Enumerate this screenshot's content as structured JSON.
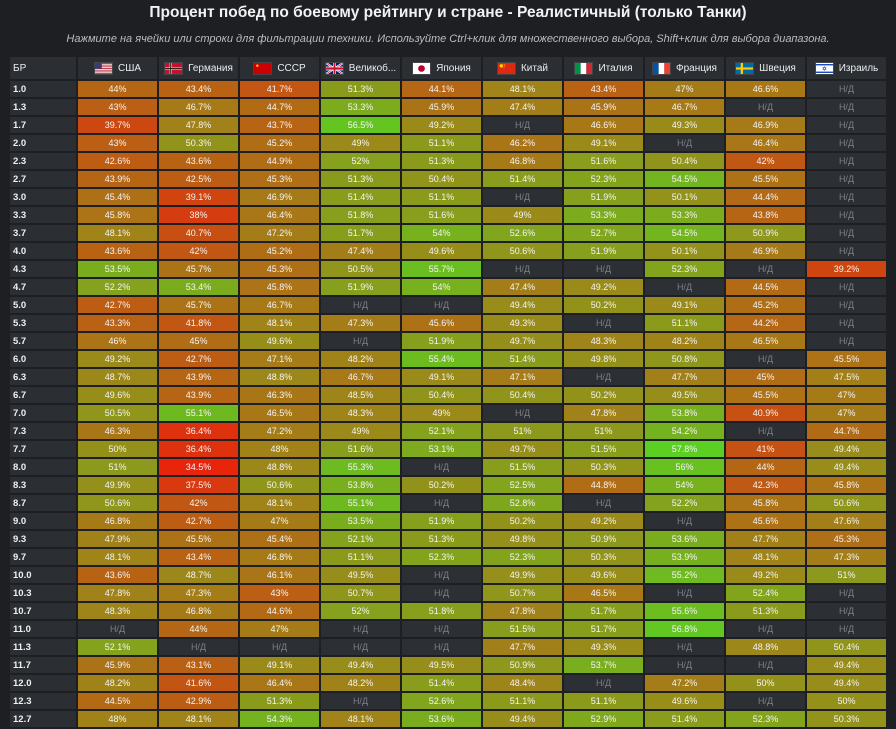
{
  "header": {
    "title": "Процент побед по боевому рейтингу и стране - Реалистичный (только Танки)",
    "subtitle": "Нажмите на ячейки или строки для фильтрации техники. Используйте Ctrl+клик для множественного выбора, Shift+клик для выбора диапазона."
  },
  "chart_data": {
    "type": "heatmap",
    "title": "Процент побед по боевому рейтингу и стране - Реалистичный (только Танки)",
    "row_header": "БР",
    "na_label": "Н/Д",
    "value_suffix": "%",
    "color_scale": {
      "low": "#e8240b",
      "mid": "#9a8a1a",
      "high": "#5bcf22",
      "min": 34.5,
      "max": 57.8
    },
    "countries": [
      {
        "name": "США",
        "flag": "usa-flag-icon"
      },
      {
        "name": "Германия",
        "flag": "germany-flag-icon"
      },
      {
        "name": "СССР",
        "flag": "ussr-flag-icon"
      },
      {
        "name": "Великоб...",
        "flag": "uk-flag-icon"
      },
      {
        "name": "Япония",
        "flag": "japan-flag-icon"
      },
      {
        "name": "Китай",
        "flag": "china-flag-icon"
      },
      {
        "name": "Италия",
        "flag": "italy-flag-icon"
      },
      {
        "name": "Франция",
        "flag": "france-flag-icon"
      },
      {
        "name": "Швеция",
        "flag": "sweden-flag-icon"
      },
      {
        "name": "Израиль",
        "flag": "israel-flag-icon"
      }
    ],
    "rows": [
      {
        "br": "1.0",
        "values": [
          44,
          43.4,
          41.7,
          51.3,
          44.1,
          48.1,
          43.4,
          47,
          46.6,
          null
        ]
      },
      {
        "br": "1.3",
        "values": [
          43,
          46.7,
          44.7,
          53.3,
          45.9,
          47.4,
          45.9,
          46.7,
          null,
          null
        ]
      },
      {
        "br": "1.7",
        "values": [
          39.7,
          47.8,
          43.7,
          56.5,
          49.2,
          null,
          46.6,
          49.3,
          46.9,
          null
        ]
      },
      {
        "br": "2.0",
        "values": [
          43,
          50.3,
          45.2,
          49,
          51.1,
          46.2,
          49.1,
          null,
          46.4,
          null
        ]
      },
      {
        "br": "2.3",
        "values": [
          42.6,
          43.6,
          44.9,
          52,
          51.3,
          46.8,
          51.6,
          50.4,
          42,
          null
        ]
      },
      {
        "br": "2.7",
        "values": [
          43.9,
          42.5,
          45.3,
          51.3,
          50.4,
          51.4,
          52.3,
          54.5,
          45.5,
          null
        ]
      },
      {
        "br": "3.0",
        "values": [
          45.4,
          39.1,
          46.9,
          51.4,
          51.1,
          null,
          51.9,
          50.1,
          44.4,
          null
        ]
      },
      {
        "br": "3.3",
        "values": [
          45.8,
          38,
          46.4,
          51.8,
          51.6,
          49,
          53.3,
          53.3,
          43.8,
          null
        ]
      },
      {
        "br": "3.7",
        "values": [
          48.1,
          40.7,
          47.2,
          51.7,
          54,
          52.6,
          52.7,
          54.5,
          50.9,
          null
        ]
      },
      {
        "br": "4.0",
        "values": [
          43.6,
          42,
          45.2,
          47.4,
          49.6,
          50.6,
          51.9,
          50.1,
          46.9,
          null
        ]
      },
      {
        "br": "4.3",
        "values": [
          53.5,
          45.7,
          45.3,
          50.5,
          55.7,
          null,
          null,
          52.3,
          null,
          39.2
        ]
      },
      {
        "br": "4.7",
        "values": [
          52.2,
          53.4,
          45.8,
          51.9,
          54,
          47.4,
          49.2,
          null,
          44.5,
          null
        ]
      },
      {
        "br": "5.0",
        "values": [
          42.7,
          45.7,
          46.7,
          null,
          null,
          49.4,
          50.2,
          49.1,
          45.2,
          null
        ]
      },
      {
        "br": "5.3",
        "values": [
          43.3,
          41.8,
          48.1,
          47.3,
          45.6,
          49.3,
          null,
          51.1,
          44.2,
          null
        ]
      },
      {
        "br": "5.7",
        "values": [
          46,
          45,
          49.6,
          null,
          51.9,
          49.7,
          48.3,
          48.2,
          46.5,
          null
        ]
      },
      {
        "br": "6.0",
        "values": [
          49.2,
          42.7,
          47.1,
          48.2,
          55.4,
          51.4,
          49.8,
          50.8,
          null,
          45.5
        ]
      },
      {
        "br": "6.3",
        "values": [
          48.7,
          43.9,
          48.8,
          46.7,
          49.1,
          47.1,
          null,
          47.7,
          45,
          47.5
        ]
      },
      {
        "br": "6.7",
        "values": [
          49.6,
          43.9,
          46.3,
          48.5,
          50.4,
          50.4,
          50.2,
          49.5,
          45.5,
          47
        ]
      },
      {
        "br": "7.0",
        "values": [
          50.5,
          55.1,
          46.5,
          48.3,
          49,
          null,
          47.8,
          53.8,
          40.9,
          47
        ]
      },
      {
        "br": "7.3",
        "values": [
          46.3,
          36.4,
          47.2,
          49,
          52.1,
          51,
          51,
          54.2,
          null,
          44.7
        ]
      },
      {
        "br": "7.7",
        "values": [
          50,
          36.4,
          48,
          51.6,
          53.1,
          49.7,
          51.5,
          57.8,
          41,
          49.4
        ]
      },
      {
        "br": "8.0",
        "values": [
          51,
          34.5,
          48.8,
          55.3,
          null,
          51.5,
          50.3,
          56,
          44,
          49.4
        ]
      },
      {
        "br": "8.3",
        "values": [
          49.9,
          37.5,
          50.6,
          53.8,
          50.2,
          52.5,
          44.8,
          54,
          42.3,
          45.8
        ]
      },
      {
        "br": "8.7",
        "values": [
          50.6,
          42,
          48.1,
          55.1,
          null,
          52.8,
          null,
          52.2,
          45.8,
          50.6
        ]
      },
      {
        "br": "9.0",
        "values": [
          46.8,
          42.7,
          47,
          53.5,
          51.9,
          50.2,
          49.2,
          null,
          45.6,
          47.6
        ]
      },
      {
        "br": "9.3",
        "values": [
          47.9,
          45.5,
          45.4,
          52.1,
          51.3,
          49.8,
          50.9,
          53.6,
          47.7,
          45.3
        ]
      },
      {
        "br": "9.7",
        "values": [
          48.1,
          43.4,
          46.8,
          51.1,
          52.3,
          52.3,
          50.3,
          53.9,
          48.1,
          47.3
        ]
      },
      {
        "br": "10.0",
        "values": [
          43.6,
          48.7,
          46.1,
          49.5,
          null,
          49.9,
          49.6,
          55.2,
          49.2,
          51
        ]
      },
      {
        "br": "10.3",
        "values": [
          47.8,
          47.3,
          43,
          50.7,
          null,
          50.7,
          46.5,
          null,
          52.4,
          null
        ]
      },
      {
        "br": "10.7",
        "values": [
          48.3,
          46.8,
          44.6,
          52,
          51.8,
          47.8,
          51.7,
          55.6,
          51.3,
          null
        ]
      },
      {
        "br": "11.0",
        "values": [
          null,
          44,
          47,
          null,
          null,
          51.5,
          51.7,
          56.8,
          null,
          null
        ]
      },
      {
        "br": "11.3",
        "values": [
          52.1,
          null,
          null,
          null,
          null,
          47.7,
          49.3,
          null,
          48.8,
          50.4
        ]
      },
      {
        "br": "11.7",
        "values": [
          45.9,
          43.1,
          49.1,
          49.4,
          49.5,
          50.9,
          53.7,
          null,
          null,
          49.4
        ]
      },
      {
        "br": "12.0",
        "values": [
          48.2,
          41.6,
          46.4,
          48.2,
          51.4,
          48.4,
          null,
          47.2,
          50,
          49.4
        ]
      },
      {
        "br": "12.3",
        "values": [
          44.5,
          42.9,
          51.3,
          null,
          52.6,
          51.1,
          51.1,
          49.6,
          null,
          50
        ]
      },
      {
        "br": "12.7",
        "values": [
          48,
          48.1,
          54.3,
          48.1,
          53.6,
          49.4,
          52.9,
          51.4,
          52.3,
          50.3
        ]
      }
    ]
  }
}
